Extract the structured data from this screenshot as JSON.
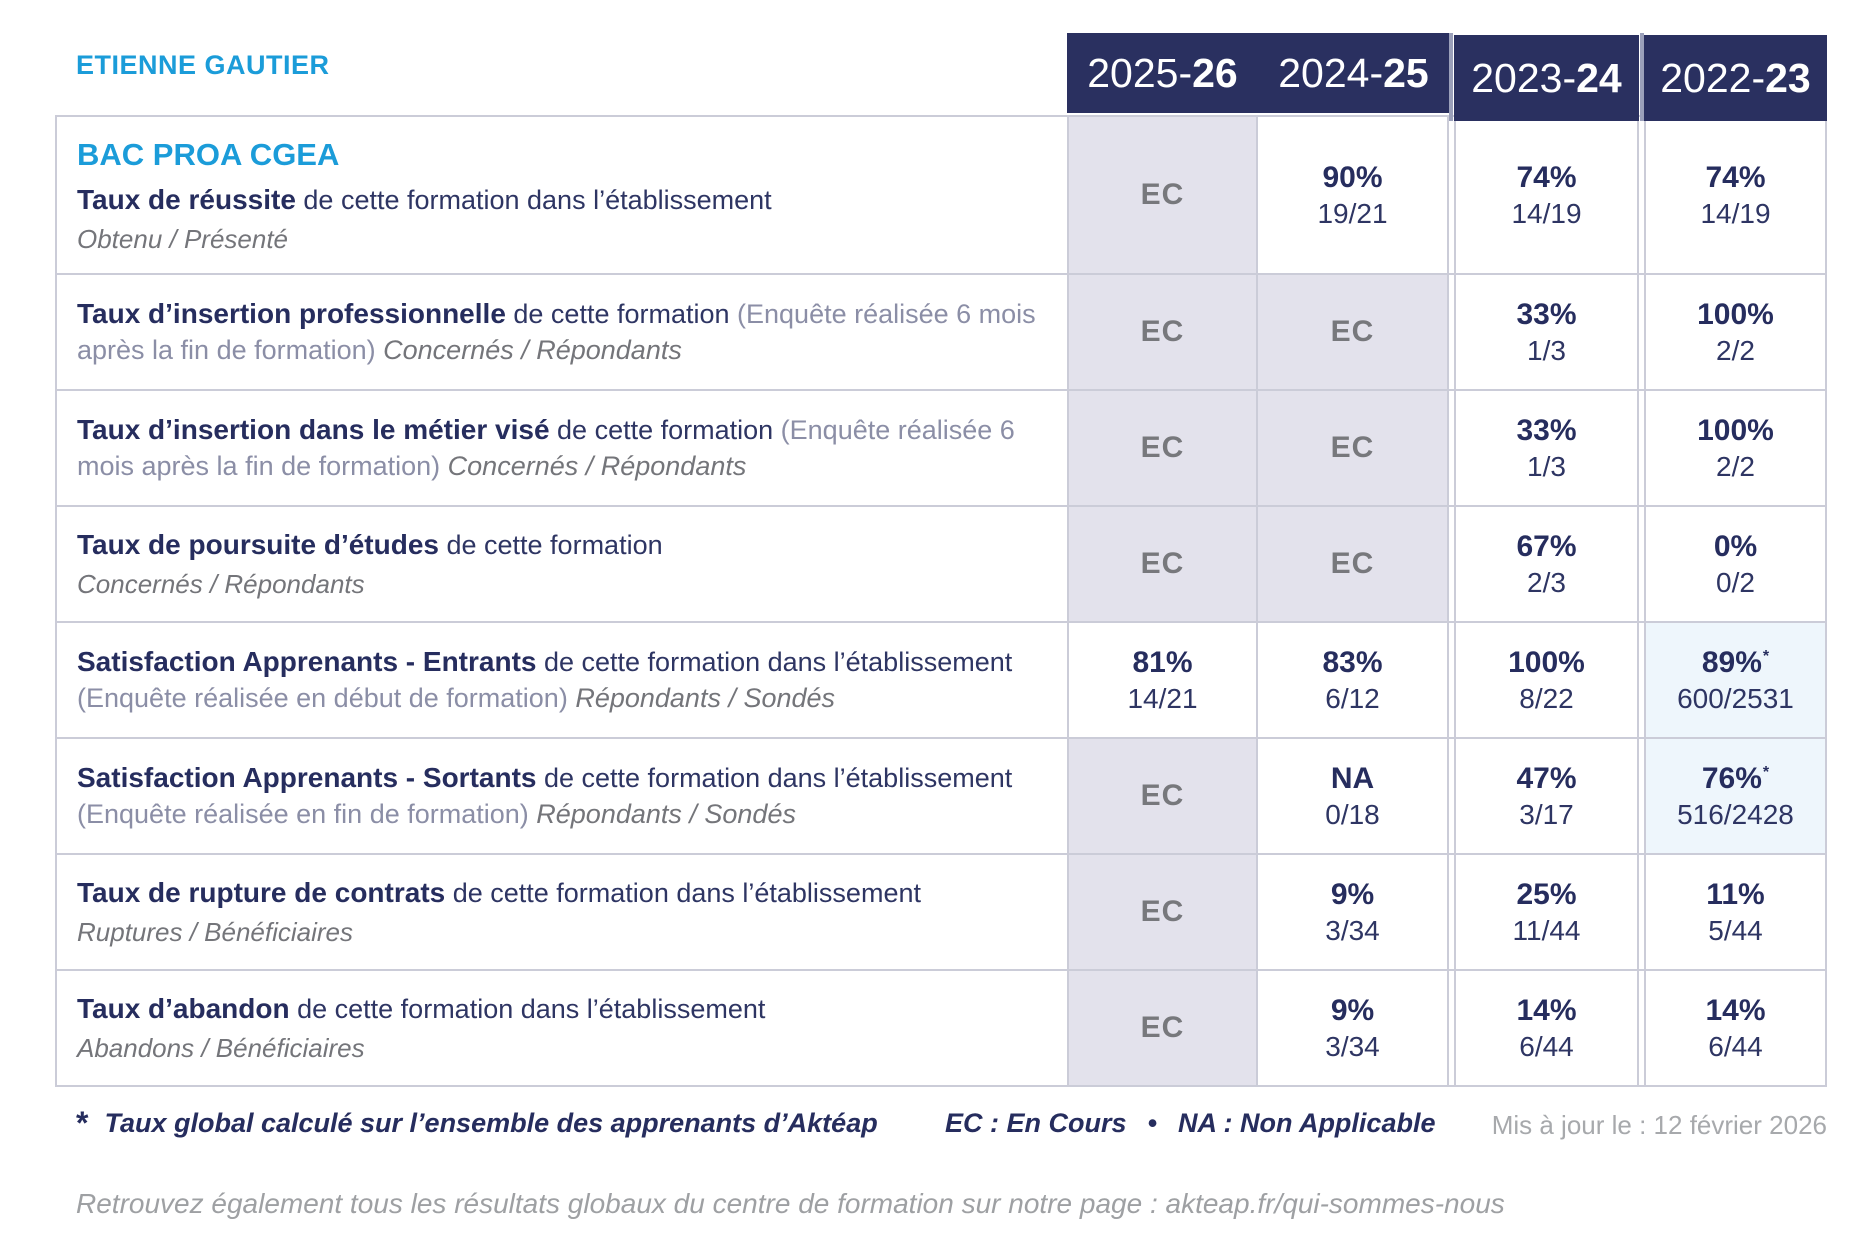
{
  "colors": {
    "accent_cyan": "#1b9cd9",
    "navy": "#2a3060",
    "ec_cell_bg": "#e3e2ec",
    "highlight_cell_bg": "#eef6fc",
    "grid_border": "#cbccd8",
    "muted_gray": "#a7a9ac"
  },
  "header": {
    "owner": "ETIENNE GAUTIER"
  },
  "table": {
    "columns": [
      {
        "prefix": "2025-",
        "bold": "26"
      },
      {
        "prefix": "2024-",
        "bold": "25"
      },
      {
        "prefix": "2023-",
        "bold": "24"
      },
      {
        "prefix": "2022-",
        "bold": "23"
      }
    ],
    "rows": [
      {
        "heading": "BAC PROA CGEA",
        "segments": [
          {
            "t": "Taux de réussite",
            "s": "b"
          },
          {
            "t": " de cette formation dans l’établissement",
            "s": "n"
          }
        ],
        "subline": "Obtenu / Présenté",
        "cells": [
          {
            "v": "EC"
          },
          {
            "pct": "90%",
            "frac": "19/21"
          },
          {
            "pct": "74%",
            "frac": "14/19"
          },
          {
            "pct": "74%",
            "frac": "14/19"
          }
        ]
      },
      {
        "segments": [
          {
            "t": "Taux d’insertion professionnelle",
            "s": "b"
          },
          {
            "t": " de cette formation ",
            "s": "n"
          },
          {
            "t": "(Enquête réalisée 6 mois après la fin de formation) ",
            "s": "g"
          },
          {
            "t": "Concernés / Répondants",
            "s": "i"
          }
        ],
        "cells": [
          {
            "v": "EC"
          },
          {
            "v": "EC"
          },
          {
            "pct": "33%",
            "frac": "1/3"
          },
          {
            "pct": "100%",
            "frac": "2/2"
          }
        ]
      },
      {
        "segments": [
          {
            "t": "Taux d’insertion dans le métier visé",
            "s": "b"
          },
          {
            "t": " de cette formation ",
            "s": "n"
          },
          {
            "t": "(Enquête réalisée 6 mois après la fin de formation) ",
            "s": "g"
          },
          {
            "t": "Concernés / Répondants",
            "s": "i"
          }
        ],
        "cells": [
          {
            "v": "EC"
          },
          {
            "v": "EC"
          },
          {
            "pct": "33%",
            "frac": "1/3"
          },
          {
            "pct": "100%",
            "frac": "2/2"
          }
        ]
      },
      {
        "segments": [
          {
            "t": "Taux de poursuite d’études",
            "s": "b"
          },
          {
            "t": " de cette formation",
            "s": "n"
          }
        ],
        "subline": "Concernés / Répondants",
        "cells": [
          {
            "v": "EC"
          },
          {
            "v": "EC"
          },
          {
            "pct": "67%",
            "frac": "2/3"
          },
          {
            "pct": "0%",
            "frac": "0/2"
          }
        ]
      },
      {
        "segments": [
          {
            "t": "Satisfaction Apprenants - Entrants",
            "s": "b"
          },
          {
            "t": " de cette formation dans l’établissement ",
            "s": "n"
          },
          {
            "t": "(Enquête réalisée en début de formation) ",
            "s": "g"
          },
          {
            "t": "Répondants / Sondés",
            "s": "i"
          }
        ],
        "cells": [
          {
            "pct": "81%",
            "frac": "14/21"
          },
          {
            "pct": "83%",
            "frac": "6/12"
          },
          {
            "pct": "100%",
            "frac": "8/22"
          },
          {
            "pct": "89%",
            "star": "*",
            "frac": "600/2531",
            "hl": true
          }
        ]
      },
      {
        "segments": [
          {
            "t": "Satisfaction Apprenants - Sortants",
            "s": "b"
          },
          {
            "t": " de cette formation dans l’établissement ",
            "s": "n"
          },
          {
            "t": "(Enquête réalisée en fin de formation) ",
            "s": "g"
          },
          {
            "t": "Répondants / Sondés",
            "s": "i"
          }
        ],
        "cells": [
          {
            "v": "EC"
          },
          {
            "pct": "NA",
            "frac": "0/18"
          },
          {
            "pct": "47%",
            "frac": "3/17"
          },
          {
            "pct": "76%",
            "star": "*",
            "frac": "516/2428",
            "hl": true
          }
        ]
      },
      {
        "segments": [
          {
            "t": "Taux de rupture de contrats",
            "s": "b"
          },
          {
            "t": " de cette formation dans l’établissement",
            "s": "n"
          }
        ],
        "subline": "Ruptures / Bénéficiaires",
        "cells": [
          {
            "v": "EC"
          },
          {
            "pct": "9%",
            "frac": "3/34"
          },
          {
            "pct": "25%",
            "frac": "11/44"
          },
          {
            "pct": "11%",
            "frac": "5/44"
          }
        ]
      },
      {
        "segments": [
          {
            "t": "Taux d’abandon",
            "s": "b"
          },
          {
            "t": " de cette formation dans l’établissement",
            "s": "n"
          }
        ],
        "subline": "Abandons / Bénéficiaires",
        "cells": [
          {
            "v": "EC"
          },
          {
            "pct": "9%",
            "frac": "3/34"
          },
          {
            "pct": "14%",
            "frac": "6/44"
          },
          {
            "pct": "14%",
            "frac": "6/44"
          }
        ]
      }
    ]
  },
  "footer": {
    "star": "*",
    "footnote": "Taux global calculé sur l’ensemble des apprenants d’Aktéap",
    "legend": "EC : En Cours  •  NA : Non Applicable",
    "updated": "Mis à jour le : 12 février 2026",
    "bottom_note": "Retrouvez également tous les résultats globaux du centre de formation sur notre page : akteap.fr/qui-sommes-nous"
  }
}
